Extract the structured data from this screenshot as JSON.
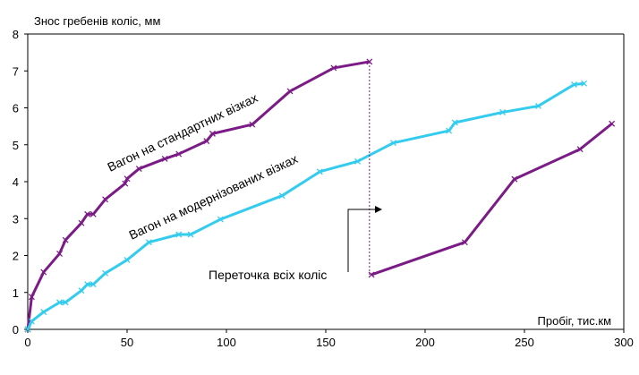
{
  "chart_data": {
    "type": "line",
    "title": "",
    "ylabel": "Знос гребенів коліс, мм",
    "xlabel": "Пробіг, тис.км",
    "xlim": [
      0,
      300
    ],
    "ylim": [
      0,
      8
    ],
    "x_ticks": [
      "0",
      "50",
      "100",
      "150",
      "200",
      "250",
      "300"
    ],
    "y_ticks": [
      "0",
      "1",
      "2",
      "3",
      "4",
      "5",
      "6",
      "7",
      "8"
    ],
    "grid": false,
    "legend": "none",
    "series": [
      {
        "name": "Вагон на стандартних візках",
        "color": "#7B1C86",
        "points": [
          [
            0,
            0
          ],
          [
            2,
            0.88
          ],
          [
            8,
            1.55
          ],
          [
            16,
            2.05
          ],
          [
            19,
            2.42
          ],
          [
            27,
            2.88
          ],
          [
            30,
            3.12
          ],
          [
            33,
            3.12
          ],
          [
            39,
            3.52
          ],
          [
            49,
            3.95
          ],
          [
            50,
            4.08
          ],
          [
            56,
            4.35
          ],
          [
            69,
            4.62
          ],
          [
            76,
            4.75
          ],
          [
            90,
            5.1
          ],
          [
            93,
            5.3
          ],
          [
            113,
            5.55
          ],
          [
            132,
            6.45
          ],
          [
            154,
            7.08
          ],
          [
            172,
            7.25
          ]
        ]
      },
      {
        "name": "Вагон на модернізованих візках",
        "color": "#33CCEE",
        "points": [
          [
            0,
            0
          ],
          [
            2,
            0.22
          ],
          [
            8,
            0.47
          ],
          [
            16,
            0.73
          ],
          [
            19,
            0.73
          ],
          [
            27,
            1.05
          ],
          [
            30,
            1.22
          ],
          [
            33,
            1.22
          ],
          [
            39,
            1.52
          ],
          [
            50,
            1.88
          ],
          [
            61,
            2.36
          ],
          [
            76,
            2.57
          ],
          [
            82,
            2.57
          ],
          [
            97,
            2.98
          ],
          [
            128,
            3.62
          ],
          [
            147,
            4.27
          ],
          [
            166,
            4.55
          ],
          [
            184,
            5.05
          ],
          [
            212,
            5.38
          ],
          [
            215,
            5.6
          ],
          [
            239,
            5.88
          ],
          [
            257,
            6.05
          ],
          [
            275,
            6.63
          ],
          [
            280,
            6.66
          ]
        ]
      },
      {
        "name": "",
        "color": "#7B1C86",
        "points": [
          [
            173,
            1.48
          ],
          [
            220,
            2.36
          ],
          [
            245,
            4.07
          ],
          [
            278,
            4.88
          ],
          [
            294,
            5.57
          ]
        ]
      }
    ],
    "annotations": {
      "label_standard": "Вагон на стандартних візках",
      "label_modern": "Вагон на модернізованих візках",
      "reprofile": "Переточка всіх коліс",
      "reprofile_at_x": 172
    }
  }
}
